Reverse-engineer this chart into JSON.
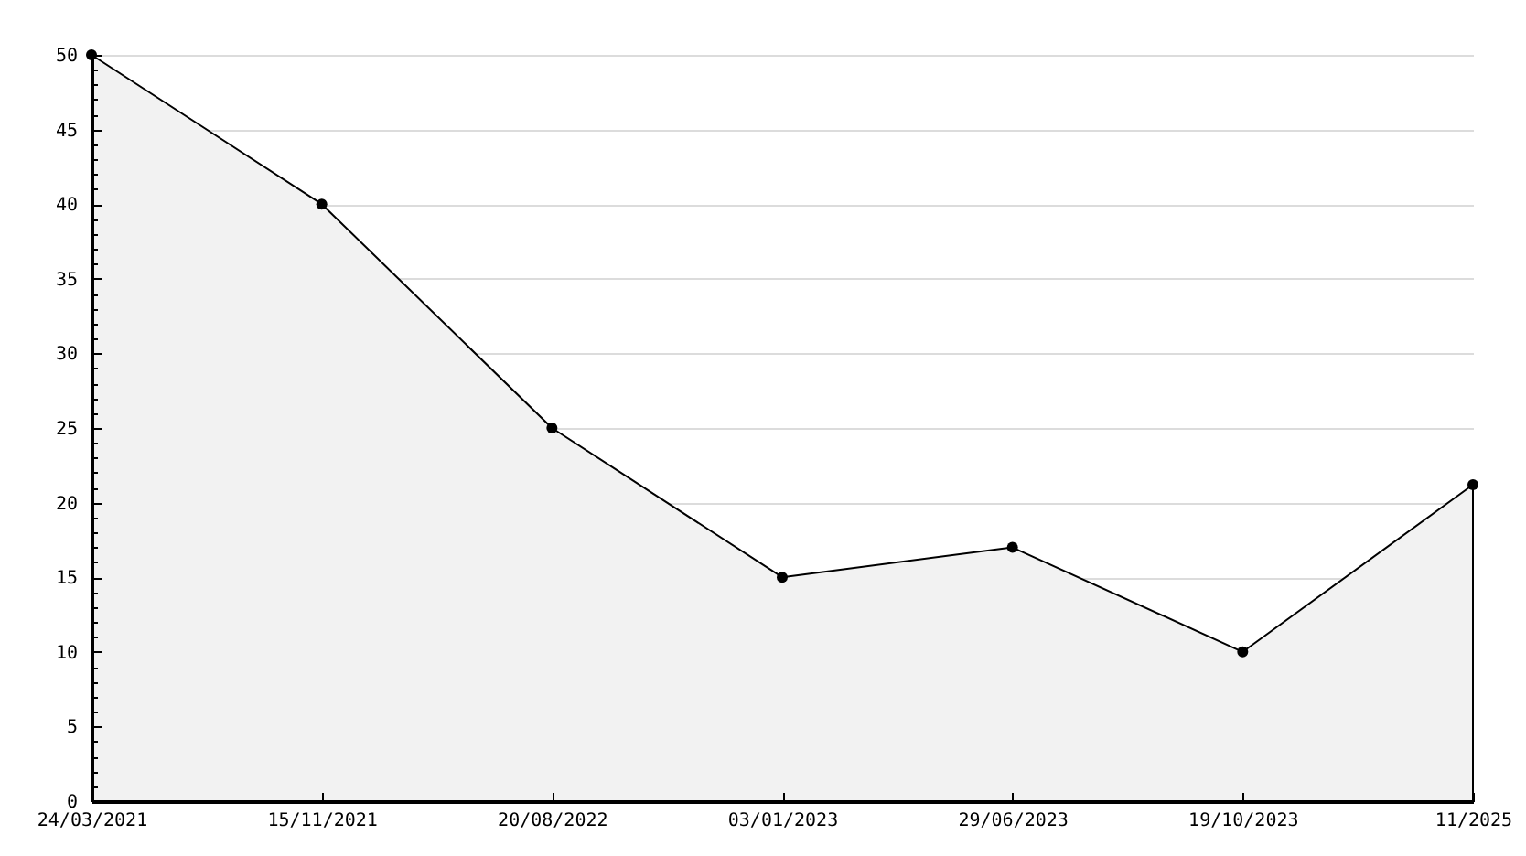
{
  "chart_data": {
    "type": "area",
    "categories": [
      "24/03/2021",
      "15/11/2021",
      "20/08/2022",
      "03/01/2023",
      "29/06/2023",
      "19/10/2023",
      "11/2025"
    ],
    "values": [
      50,
      40,
      25,
      15,
      17,
      10,
      21.2
    ],
    "color": "#000000",
    "ylim": [
      0,
      50
    ],
    "yticks": [
      0,
      {
        "value": 1,
        "label": null
      },
      {
        "value": 2,
        "label": null
      },
      {
        "value": 3,
        "label": null
      },
      {
        "value": 4,
        "label": null
      },
      5,
      {
        "value": 6,
        "label": null
      },
      {
        "value": 7,
        "label": null
      },
      {
        "value": 8,
        "label": null
      },
      {
        "value": 9,
        "label": null
      },
      10,
      {
        "value": 11,
        "label": null
      },
      {
        "value": 12,
        "label": null
      },
      {
        "value": 13,
        "label": null
      },
      {
        "value": 14,
        "label": null
      },
      15,
      {
        "value": 16,
        "label": null
      },
      {
        "value": 17,
        "label": null
      },
      {
        "value": 18,
        "label": null
      },
      {
        "value": 19,
        "label": null
      },
      20,
      {
        "value": 21,
        "label": null
      },
      {
        "value": 22,
        "label": null
      },
      {
        "value": 23,
        "label": null
      },
      {
        "value": 24,
        "label": null
      },
      25,
      {
        "value": 26,
        "label": null
      },
      {
        "value": 27,
        "label": null
      },
      {
        "value": 28,
        "label": null
      },
      {
        "value": 29,
        "label": null
      },
      30,
      {
        "value": 31,
        "label": null
      },
      {
        "value": 32,
        "label": null
      },
      {
        "value": 33,
        "label": null
      },
      {
        "value": 34,
        "label": null
      },
      35,
      {
        "value": 36,
        "label": null
      },
      {
        "value": 37,
        "label": null
      },
      {
        "value": 38,
        "label": null
      },
      {
        "value": 39,
        "label": null
      },
      40,
      {
        "value": 41,
        "label": null
      },
      {
        "value": 42,
        "label": null
      },
      {
        "value": 43,
        "label": null
      },
      {
        "value": 44,
        "label": null
      },
      45,
      {
        "value": 46,
        "label": null
      },
      {
        "value": 47,
        "label": null
      },
      {
        "value": 48,
        "label": null
      },
      {
        "value": 49,
        "label": null
      },
      50
    ],
    "grid": "y",
    "marker": "circle",
    "line_style": "solid"
  }
}
